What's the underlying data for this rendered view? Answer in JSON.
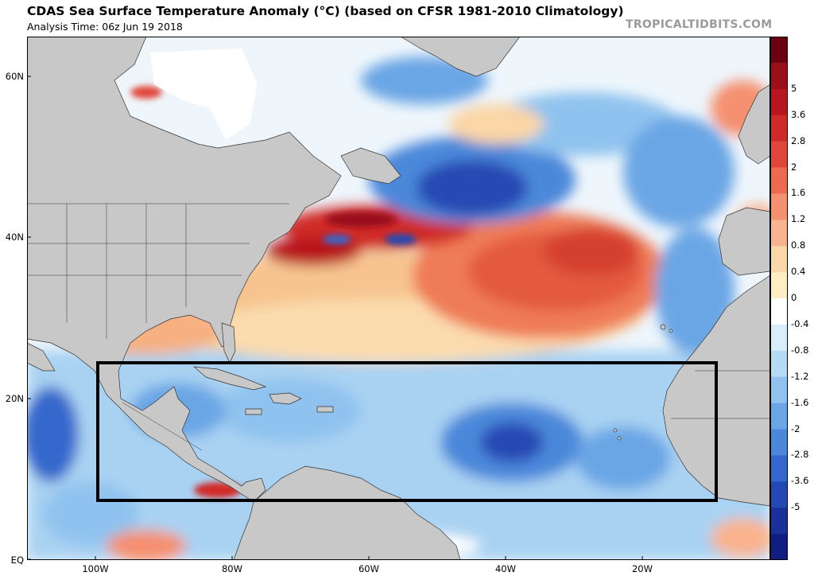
{
  "header": {
    "title": "CDAS Sea Surface Temperature Anomaly (°C) (based on CFSR 1981-2010 Climatology)",
    "subtitle": "Analysis Time: 06z Jun 19 2018",
    "brand": "TROPICALTIDBITS.COM"
  },
  "axes": {
    "lat_labels": [
      "60N",
      "40N",
      "20N",
      "EQ"
    ],
    "lon_labels": [
      "100W",
      "80W",
      "60W",
      "40W",
      "20W"
    ]
  },
  "colorbar": {
    "labels": [
      "5",
      "3.6",
      "2.8",
      "2",
      "1.6",
      "1.2",
      "0.8",
      "0.4",
      "0",
      "-0.4",
      "-0.8",
      "-1.2",
      "-1.6",
      "-2",
      "-2.8",
      "-3.6",
      "-5"
    ],
    "colors": [
      "#6b0011",
      "#9a0f1a",
      "#b8161f",
      "#d02a28",
      "#e0473a",
      "#ec6a50",
      "#f59070",
      "#f9b48f",
      "#fbd6a6",
      "#fdeec4",
      "#ffffff",
      "#d9eefb",
      "#b5dbf4",
      "#8fc2ee",
      "#6aa6e5",
      "#4c88da",
      "#3468cc",
      "#2549b3",
      "#1a309a",
      "#101e82"
    ]
  },
  "colors": {
    "land": "#c8c8c8",
    "ice": "#ffffff",
    "box": "#000000"
  }
}
